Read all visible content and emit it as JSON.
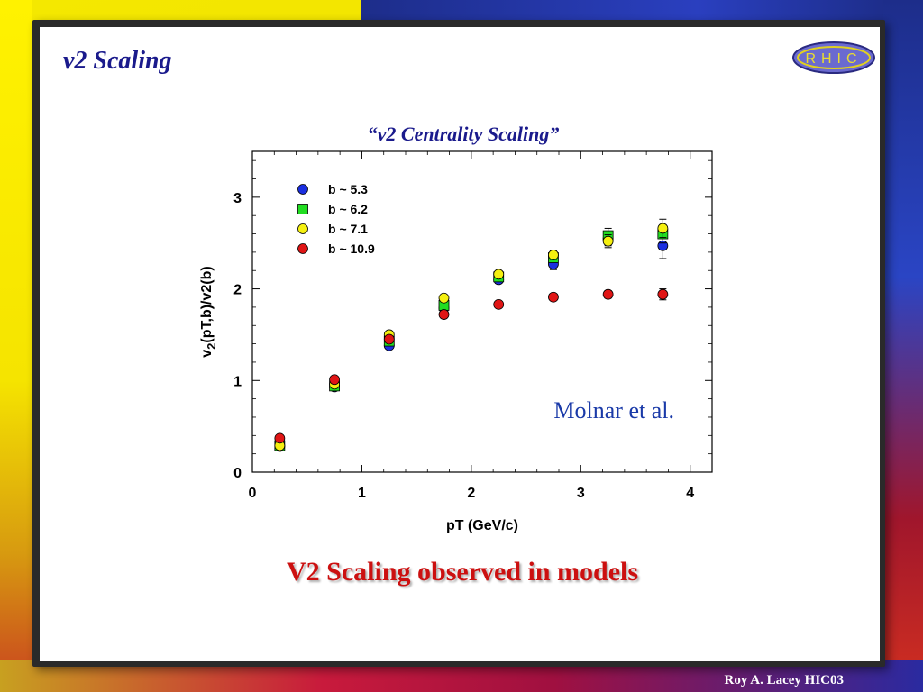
{
  "slide": {
    "title": "v2 Scaling",
    "conclusion": "V2 Scaling observed in models",
    "footer": "Roy A. Lacey HIC03",
    "logo_text": "RHIC"
  },
  "colors": {
    "title": "#1a1a8c",
    "conclusion": "#cc1010",
    "annotation": "#1a3aa8"
  },
  "chart_data": {
    "type": "scatter",
    "title": "“v2 Centrality Scaling”",
    "xlabel": "pT (GeV/c)",
    "ylabel_main": "v",
    "ylabel_sub": "2",
    "ylabel_rest": "(pT,b)/v2(b)",
    "xlim": [
      0,
      4.2
    ],
    "ylim": [
      0,
      3.5
    ],
    "xticks": [
      "0",
      "1",
      "2",
      "3",
      "4"
    ],
    "yticks": [
      "0",
      "1",
      "2",
      "3"
    ],
    "annotation": "Molnar et al.",
    "legend_position": "top-left",
    "grid": false,
    "series": [
      {
        "name": "b ~ 5.3",
        "marker": "circle",
        "color": "#1a2ee0",
        "points": [
          [
            0.25,
            0.28
          ],
          [
            0.75,
            0.93
          ],
          [
            1.25,
            1.38
          ],
          [
            1.75,
            1.79
          ],
          [
            2.25,
            2.1
          ],
          [
            2.75,
            2.27
          ],
          [
            3.25,
            2.55
          ],
          [
            3.75,
            2.47
          ]
        ],
        "errors": [
          0.02,
          0.02,
          0.02,
          0.03,
          0.04,
          0.06,
          0.08,
          0.14
        ]
      },
      {
        "name": "b ~ 6.2",
        "marker": "square",
        "color": "#22dd22",
        "points": [
          [
            0.25,
            0.29
          ],
          [
            0.75,
            0.94
          ],
          [
            1.25,
            1.43
          ],
          [
            1.75,
            1.82
          ],
          [
            2.25,
            2.13
          ],
          [
            2.75,
            2.34
          ],
          [
            3.25,
            2.58
          ],
          [
            3.75,
            2.6
          ]
        ],
        "errors": [
          0.02,
          0.02,
          0.02,
          0.03,
          0.04,
          0.05,
          0.08,
          0.1
        ]
      },
      {
        "name": "b ~ 7.1",
        "marker": "circle",
        "color": "#f5f010",
        "points": [
          [
            0.25,
            0.29
          ],
          [
            0.75,
            0.96
          ],
          [
            1.25,
            1.5
          ],
          [
            1.75,
            1.9
          ],
          [
            2.25,
            2.16
          ],
          [
            2.75,
            2.37
          ],
          [
            3.25,
            2.52
          ],
          [
            3.75,
            2.66
          ]
        ],
        "errors": [
          0.02,
          0.02,
          0.02,
          0.03,
          0.03,
          0.05,
          0.07,
          0.1
        ]
      },
      {
        "name": "b ~ 10.9",
        "marker": "circle",
        "color": "#e01515",
        "points": [
          [
            0.25,
            0.37
          ],
          [
            0.75,
            1.01
          ],
          [
            1.25,
            1.45
          ],
          [
            1.75,
            1.72
          ],
          [
            2.25,
            1.83
          ],
          [
            2.75,
            1.91
          ],
          [
            3.25,
            1.94
          ],
          [
            3.75,
            1.94
          ]
        ],
        "errors": [
          0.02,
          0.02,
          0.02,
          0.02,
          0.02,
          0.03,
          0.04,
          0.06
        ]
      }
    ]
  }
}
